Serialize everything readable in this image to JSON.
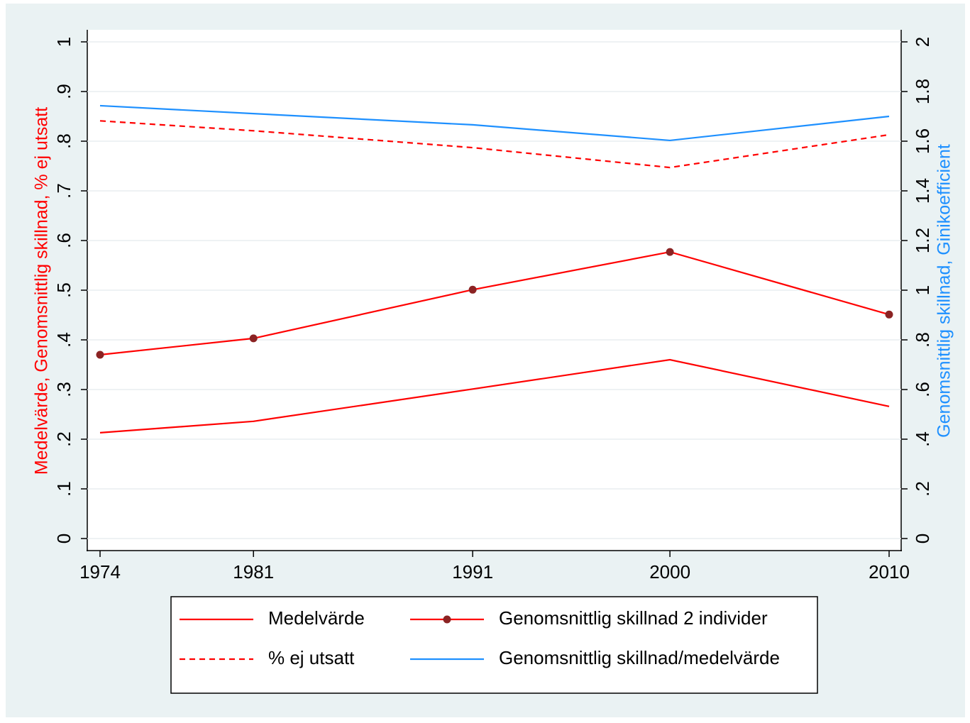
{
  "chart_data": {
    "type": "line",
    "y_label": "Medelvärde, Genomsnittlig skillnad, % ej utsatt",
    "y2_label": "Genomsnittlig skillnad, Ginikoefficient",
    "x": [
      1974,
      1981,
      1991,
      2000,
      2010
    ],
    "xlim": [
      1974,
      2010
    ],
    "xticks": [
      1974,
      1981,
      1991,
      2000,
      2010
    ],
    "ylim": [
      0,
      1
    ],
    "yticks": [
      0,
      {
        "value": 0.1,
        "label": ".1"
      },
      {
        "value": 0.2,
        "label": ".2"
      },
      {
        "value": 0.3,
        "label": ".3"
      },
      {
        "value": 0.4,
        "label": ".4"
      },
      {
        "value": 0.5,
        "label": ".5"
      },
      {
        "value": 0.6,
        "label": ".6"
      },
      {
        "value": 0.7,
        "label": ".7"
      },
      {
        "value": 0.8,
        "label": ".8"
      },
      {
        "value": 0.9,
        "label": ".9"
      },
      1
    ],
    "y2lim": [
      0,
      2
    ],
    "y2ticks": [
      0,
      {
        "value": 0.2,
        "label": ".2"
      },
      {
        "value": 0.4,
        "label": ".4"
      },
      {
        "value": 0.6,
        "label": ".6"
      },
      {
        "value": 0.8,
        "label": ".8"
      },
      1,
      1.2,
      1.4,
      1.6,
      1.8,
      2
    ],
    "grid": true,
    "series": [
      {
        "name": "Medelvärde",
        "color": "#ff0000",
        "line_style": "solid",
        "values": [
          0.213,
          0.236,
          0.301,
          0.36,
          0.266
        ]
      },
      {
        "name": "Genomsnittlig skillnad 2 individer",
        "color": "#ff0000",
        "line_style": "solid",
        "marker": "circle",
        "marker_color": "#8b2323",
        "values": [
          0.37,
          0.403,
          0.501,
          0.577,
          0.451
        ]
      },
      {
        "name": "% ej utsatt",
        "color": "#ff0000",
        "line_style": "dashed",
        "values": [
          0.841,
          0.821,
          0.787,
          0.747,
          0.813
        ]
      },
      {
        "name": "Genomsnittlig skillnad/medelvärde",
        "color": "#1e90ff",
        "line_style": "solid",
        "axis": "y2",
        "values": [
          1.743,
          1.711,
          1.666,
          1.603,
          1.7
        ]
      }
    ]
  }
}
